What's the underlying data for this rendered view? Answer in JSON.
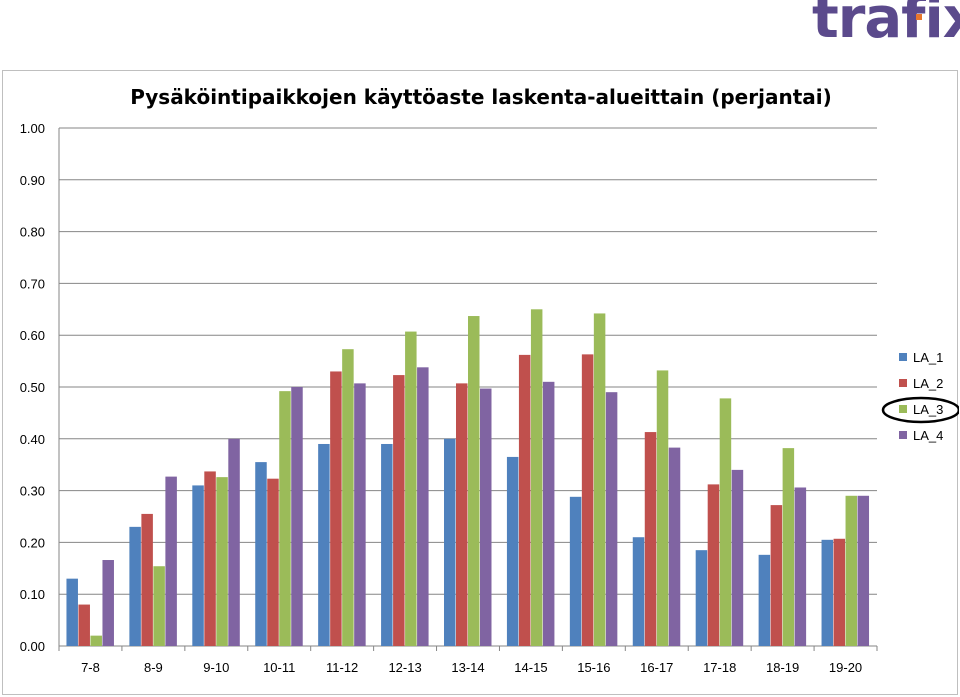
{
  "brand": {
    "logo_text": "trafix",
    "accent": "#e8762c",
    "color": "#5b4a8c"
  },
  "chart_data": {
    "type": "bar",
    "title": "Pysäköintipaikkojen käyttöaste laskenta-alueittain (perjantai)",
    "xlabel": "",
    "ylabel": "",
    "ylim": [
      0,
      1.0
    ],
    "yticks": [
      "0.00",
      "0.10",
      "0.20",
      "0.30",
      "0.40",
      "0.50",
      "0.60",
      "0.70",
      "0.80",
      "0.90",
      "1.00"
    ],
    "categories": [
      "7-8",
      "8-9",
      "9-10",
      "10-11",
      "11-12",
      "12-13",
      "13-14",
      "14-15",
      "15-16",
      "16-17",
      "17-18",
      "18-19",
      "19-20"
    ],
    "series": [
      {
        "name": "LA_1",
        "color": "#4f81bd",
        "values": [
          0.13,
          0.23,
          0.31,
          0.355,
          0.39,
          0.39,
          0.4,
          0.365,
          0.288,
          0.21,
          0.185,
          0.176,
          0.205
        ]
      },
      {
        "name": "LA_2",
        "color": "#c0504d",
        "values": [
          0.08,
          0.255,
          0.337,
          0.323,
          0.53,
          0.523,
          0.507,
          0.562,
          0.563,
          0.413,
          0.312,
          0.272,
          0.207
        ]
      },
      {
        "name": "LA_3",
        "color": "#9bbb59",
        "values": [
          0.02,
          0.154,
          0.326,
          0.492,
          0.573,
          0.607,
          0.637,
          0.65,
          0.642,
          0.532,
          0.478,
          0.382,
          0.29
        ]
      },
      {
        "name": "LA_4",
        "color": "#8064a2",
        "values": [
          0.166,
          0.327,
          0.4,
          0.5,
          0.507,
          0.538,
          0.497,
          0.51,
          0.49,
          0.383,
          0.34,
          0.306,
          0.29
        ]
      }
    ],
    "grid": true,
    "legend": {
      "position": "right",
      "highlighted": "LA_3"
    }
  }
}
